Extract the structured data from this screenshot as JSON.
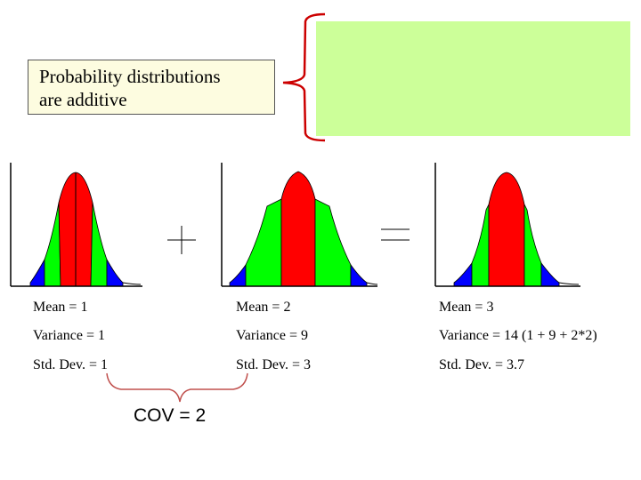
{
  "callout": {
    "text_line1": "Probability distributions",
    "text_line2": "are additive"
  },
  "operators": {
    "plus": "+",
    "equals": "="
  },
  "distributions": [
    {
      "mean": "Mean = 1",
      "variance": "Variance = 1",
      "std": "Std. Dev. = 1"
    },
    {
      "mean": "Mean = 2",
      "variance": "Variance = 9",
      "std": "Std. Dev. = 3"
    },
    {
      "mean": "Mean = 3",
      "variance": "Variance = 14 (1 + 9 + 2*2)",
      "std": "Std. Dev. = 3.7"
    }
  ],
  "covariance": "COV = 2",
  "colors": {
    "tail": "#0000ff",
    "shoulder": "#00ff00",
    "center": "#ff0000",
    "bracket": "#cc0000",
    "cov_bracket": "#c0504d",
    "green_box": "#ccff99"
  }
}
